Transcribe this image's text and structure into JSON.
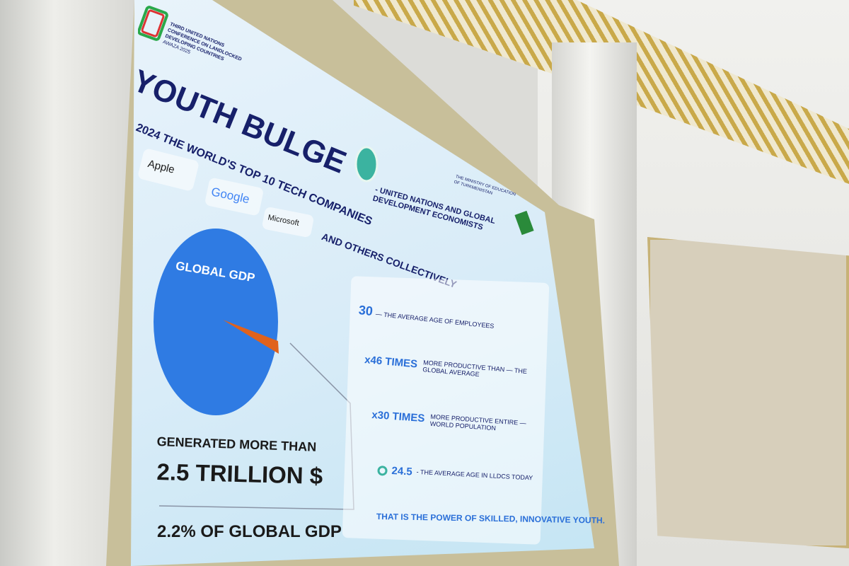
{
  "slide": {
    "conference": [
      "THIRD UNITED NATIONS",
      "CONFERENCE ON LANDLOCKED",
      "DEVELOPING COUNTRIES",
      "AWAZA 2025"
    ],
    "ministry": [
      "THE MINISTRY OF EDUCATION",
      "OF TURKMENISTAN"
    ],
    "title": "YOUTH BULGE",
    "source": [
      "- UNITED NATIONS AND GLOBAL",
      "DEVELOPMENT ECONOMISTS"
    ],
    "subtitle": [
      "2024 THE WORLD'S TOP 10 TECH COMPANIES",
      "AND OTHERS COLLECTIVELY"
    ],
    "companies": [
      "Apple",
      "Google",
      "Microsoft"
    ],
    "pie": {
      "label": "GLOBAL GDP",
      "share_percent": 2.2,
      "main_color": "#2f7be3",
      "slice_color": "#e0621c"
    },
    "generated": "GENERATED MORE THAN",
    "amount": "2.5 TRILLION $",
    "share": "2.2% OF GLOBAL GDP",
    "stats": [
      {
        "value": "30",
        "text": "— THE AVERAGE AGE OF EMPLOYEES"
      },
      {
        "value": "x46 TIMES",
        "text": "MORE PRODUCTIVE THAN — THE GLOBAL AVERAGE"
      },
      {
        "value": "x30 TIMES",
        "text": "MORE PRODUCTIVE ENTIRE — WORLD POPULATION"
      },
      {
        "value": "24.5",
        "text": "- THE AVERAGE AGE IN LLDCS TODAY"
      }
    ],
    "footer": "THAT IS THE POWER OF SKILLED, INNOVATIVE YOUTH."
  }
}
